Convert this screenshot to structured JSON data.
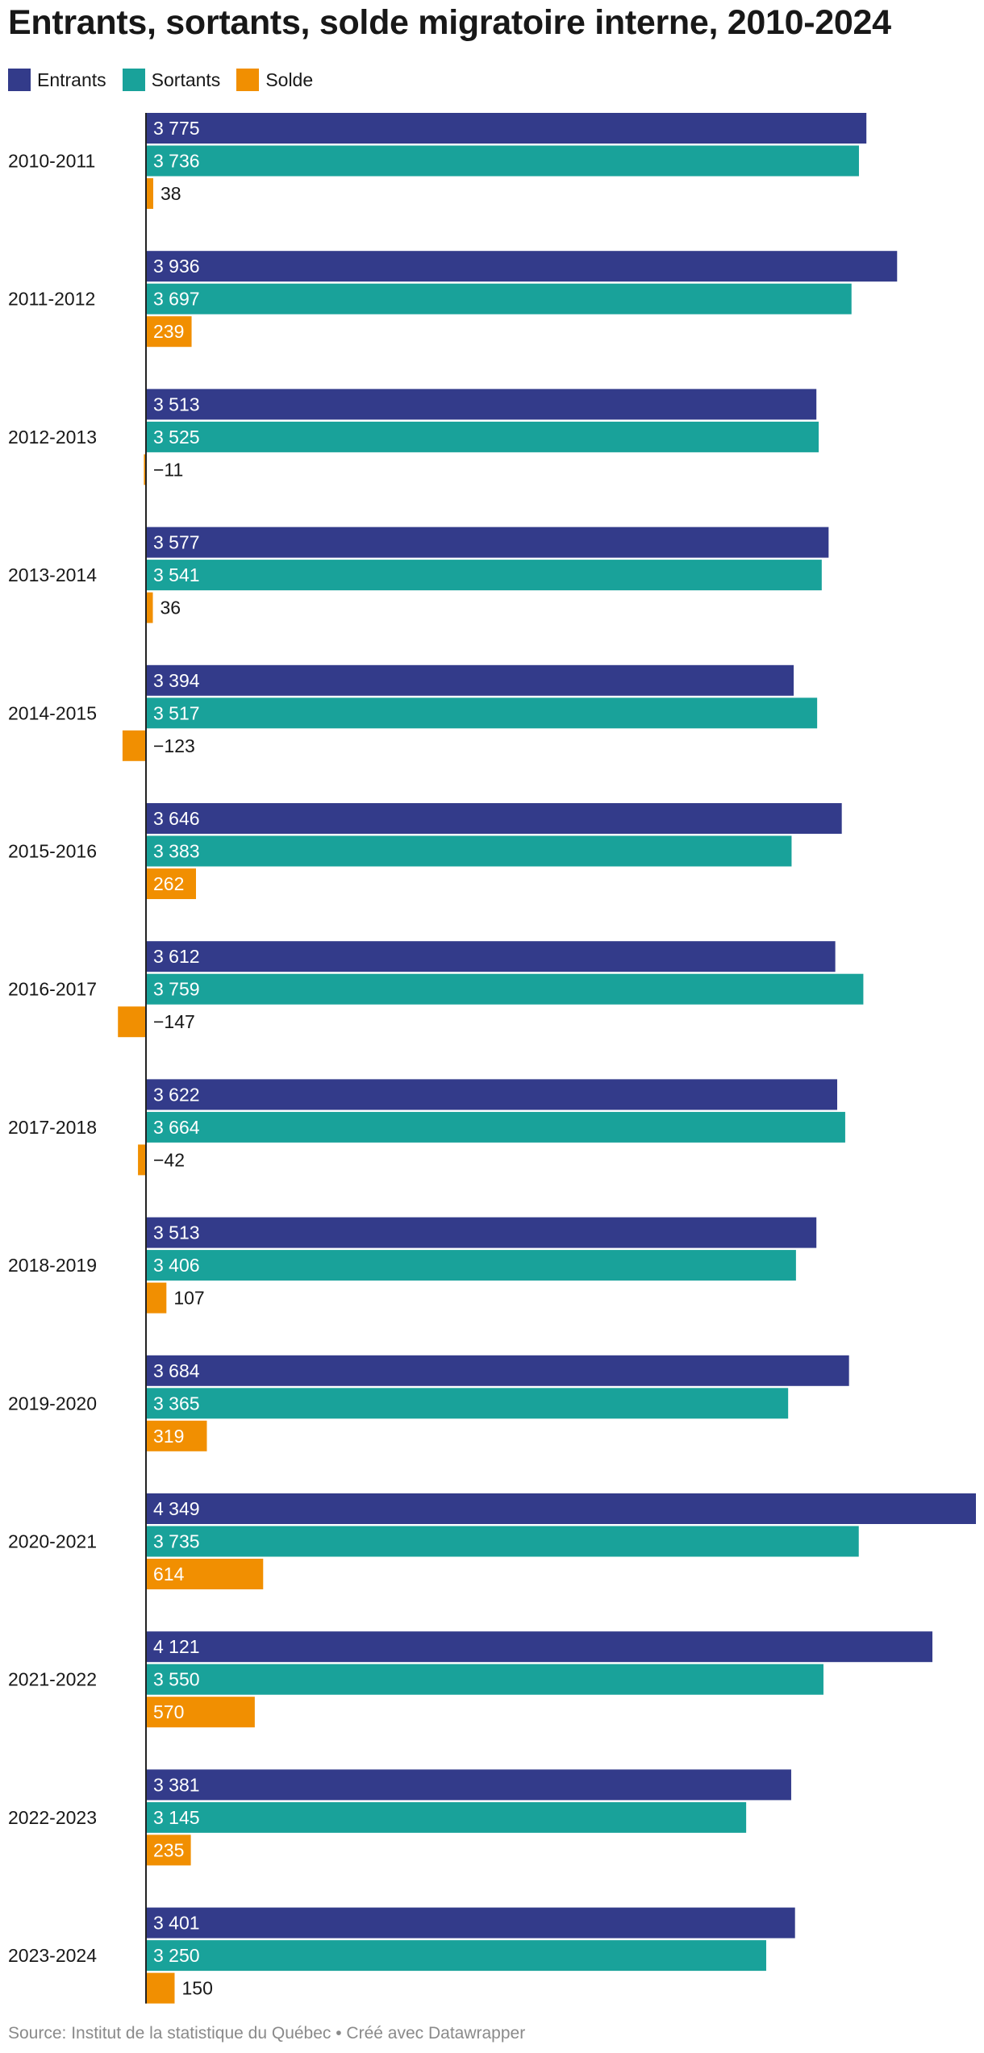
{
  "chart_data": {
    "type": "bar",
    "orientation": "horizontal",
    "title": "Entrants, sortants, solde migratoire interne, 2010-2024",
    "source": "Source: Institut de la statistique du Québec • Créé avec Datawrapper",
    "categories": [
      "2010-2011",
      "2011-2012",
      "2012-2013",
      "2013-2014",
      "2014-2015",
      "2015-2016",
      "2016-2017",
      "2017-2018",
      "2018-2019",
      "2019-2020",
      "2020-2021",
      "2021-2022",
      "2022-2023",
      "2023-2024"
    ],
    "series": [
      {
        "name": "Entrants",
        "color": "#333b8a",
        "values": [
          3775,
          3936,
          3513,
          3577,
          3394,
          3646,
          3612,
          3622,
          3513,
          3684,
          4349,
          4121,
          3381,
          3401
        ],
        "labels": [
          "3 775",
          "3 936",
          "3 513",
          "3 577",
          "3 394",
          "3 646",
          "3 612",
          "3 622",
          "3 513",
          "3 684",
          "4 349",
          "4 121",
          "3 381",
          "3 401"
        ]
      },
      {
        "name": "Sortants",
        "color": "#19a29a",
        "values": [
          3736,
          3697,
          3525,
          3541,
          3517,
          3383,
          3759,
          3664,
          3406,
          3365,
          3735,
          3550,
          3145,
          3250
        ],
        "labels": [
          "3 736",
          "3 697",
          "3 525",
          "3 541",
          "3 517",
          "3 383",
          "3 759",
          "3 664",
          "3 406",
          "3 365",
          "3 735",
          "3 550",
          "3 145",
          "3 250"
        ]
      },
      {
        "name": "Solde",
        "color": "#f18f01",
        "values": [
          38,
          239,
          -11,
          36,
          -123,
          262,
          -147,
          -42,
          107,
          319,
          614,
          570,
          235,
          150
        ],
        "labels": [
          "38",
          "239",
          "−11",
          "36",
          "−123",
          "262",
          "−147",
          "−42",
          "107",
          "319",
          "614",
          "570",
          "235",
          "150"
        ]
      }
    ],
    "xlim": [
      0,
      4349
    ],
    "grid": false,
    "legend_position": "top-left"
  }
}
